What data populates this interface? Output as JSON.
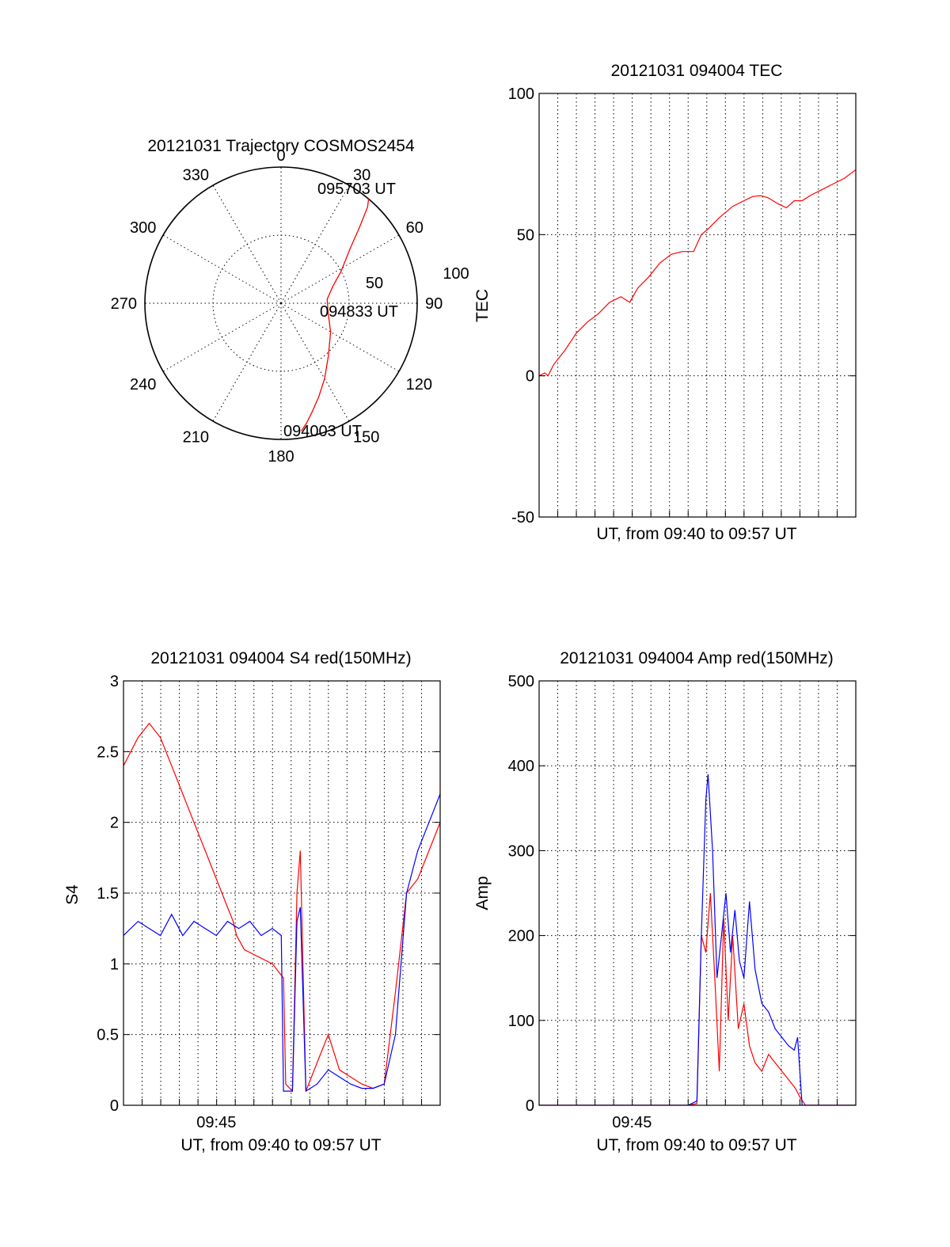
{
  "colors": {
    "red": "#ff0000",
    "blue": "#0000ff",
    "axis": "#000000"
  },
  "chart_data": [
    {
      "id": "polar",
      "type": "line",
      "projection": "polar",
      "title": "20121031 Trajectory COSMOS2454",
      "angle_labels": [
        "0",
        "30",
        "60",
        "90",
        "120",
        "150",
        "180",
        "210",
        "240",
        "270",
        "300",
        "330"
      ],
      "radius_labels": [
        "50",
        "100"
      ],
      "annotations": [
        "095703 UT",
        "094833 UT",
        "094003 UT"
      ],
      "series": [
        {
          "color": "red",
          "azimuth_deg": [
            171,
            168,
            164,
            158,
            150,
            138,
            120,
            100,
            85,
            72,
            62,
            52,
            46,
            42,
            40
          ],
          "zenith": [
            95,
            90,
            83,
            74,
            64,
            52,
            42,
            35,
            34,
            40,
            50,
            64,
            80,
            95,
            100
          ]
        }
      ]
    },
    {
      "id": "tec",
      "type": "line",
      "title": "20121031 094004 TEC",
      "xlabel": "UT, from 09:40 to 09:57 UT",
      "ylabel": "TEC",
      "xlim": [
        9.667,
        9.95
      ],
      "ylim": [
        -50,
        100
      ],
      "yticks": [
        "-50",
        "0",
        "50",
        "100"
      ],
      "xticks": [],
      "series": [
        {
          "color": "red",
          "x": [
            9.667,
            9.672,
            9.675,
            9.68,
            9.69,
            9.7,
            9.71,
            9.72,
            9.73,
            9.74,
            9.748,
            9.755,
            9.765,
            9.775,
            9.785,
            9.795,
            9.805,
            9.812,
            9.818,
            9.828,
            9.84,
            9.85,
            9.858,
            9.865,
            9.872,
            9.88,
            9.888,
            9.895,
            9.902,
            9.91,
            9.92,
            9.93,
            9.94,
            9.95
          ],
          "y": [
            0,
            1,
            0,
            4,
            9,
            15,
            19,
            22,
            26,
            28,
            26,
            31,
            35,
            40,
            43,
            44,
            44,
            50,
            52,
            56,
            60,
            62,
            63.5,
            63.8,
            63,
            61,
            59.5,
            62,
            62,
            64,
            66,
            68,
            70,
            73
          ]
        }
      ]
    },
    {
      "id": "s4",
      "type": "line",
      "title": "20121031 094004 S4 red(150MHz)",
      "xlabel": "UT, from 09:40 to 09:57 UT",
      "ylabel": "S4",
      "xlim": [
        9.667,
        9.95
      ],
      "ylim": [
        0,
        3
      ],
      "yticks": [
        "0",
        "0.5",
        "1",
        "1.5",
        "2",
        "2.5",
        "3"
      ],
      "xticks": [
        {
          "x": 9.75,
          "label": "09:45"
        }
      ],
      "series": [
        {
          "color": "red",
          "x": [
            9.667,
            9.68,
            9.69,
            9.7,
            9.71,
            9.72,
            9.73,
            9.74,
            9.75,
            9.76,
            9.765,
            9.768,
            9.775,
            9.8,
            9.81,
            9.812,
            9.818,
            9.822,
            9.825,
            9.83,
            9.84,
            9.85,
            9.86,
            9.87,
            9.88,
            9.89,
            9.9,
            9.91,
            9.92,
            9.93,
            9.94,
            9.95
          ],
          "y": [
            2.4,
            2.6,
            2.7,
            2.6,
            2.4,
            2.2,
            2.0,
            1.8,
            1.6,
            1.4,
            1.3,
            1.2,
            1.1,
            1.0,
            0.9,
            0.15,
            0.1,
            1.5,
            1.8,
            0.1,
            0.3,
            0.5,
            0.25,
            0.2,
            0.15,
            0.12,
            0.15,
            0.8,
            1.5,
            1.6,
            1.8,
            2.0
          ]
        },
        {
          "color": "blue",
          "x": [
            9.667,
            9.68,
            9.69,
            9.7,
            9.71,
            9.72,
            9.73,
            9.74,
            9.75,
            9.76,
            9.77,
            9.78,
            9.79,
            9.8,
            9.808,
            9.81,
            9.812,
            9.818,
            9.822,
            9.825,
            9.83,
            9.84,
            9.85,
            9.86,
            9.87,
            9.88,
            9.89,
            9.9,
            9.91,
            9.92,
            9.93,
            9.94,
            9.95
          ],
          "y": [
            1.2,
            1.3,
            1.25,
            1.2,
            1.35,
            1.2,
            1.3,
            1.25,
            1.2,
            1.3,
            1.25,
            1.3,
            1.2,
            1.25,
            1.2,
            0.1,
            0.1,
            0.1,
            1.3,
            1.4,
            0.1,
            0.15,
            0.25,
            0.2,
            0.15,
            0.12,
            0.12,
            0.15,
            0.5,
            1.5,
            1.8,
            2.0,
            2.2
          ]
        }
      ]
    },
    {
      "id": "amp",
      "type": "line",
      "title": "20121031 094004 Amp red(150MHz)",
      "xlabel": "UT, from 09:40 to 09:57 UT",
      "ylabel": "Amp",
      "xlim": [
        9.667,
        9.95
      ],
      "ylim": [
        0,
        500
      ],
      "yticks": [
        "0",
        "100",
        "200",
        "300",
        "400",
        "500"
      ],
      "xticks": [
        {
          "x": 9.75,
          "label": "09:45"
        }
      ],
      "series": [
        {
          "color": "red",
          "x": [
            9.667,
            9.8,
            9.808,
            9.812,
            9.816,
            9.82,
            9.824,
            9.828,
            9.832,
            9.836,
            9.84,
            9.845,
            9.85,
            9.855,
            9.86,
            9.866,
            9.872,
            9.878,
            9.884,
            9.89,
            9.896,
            9.9,
            9.905,
            9.95
          ],
          "y": [
            0,
            0,
            2,
            200,
            180,
            250,
            150,
            40,
            220,
            100,
            200,
            90,
            120,
            70,
            50,
            40,
            60,
            50,
            40,
            30,
            20,
            10,
            0,
            0
          ]
        },
        {
          "color": "blue",
          "x": [
            9.667,
            9.8,
            9.808,
            9.812,
            9.816,
            9.818,
            9.822,
            9.826,
            9.83,
            9.834,
            9.838,
            9.842,
            9.846,
            9.85,
            9.855,
            9.86,
            9.866,
            9.872,
            9.878,
            9.884,
            9.89,
            9.895,
            9.898,
            9.902,
            9.95
          ],
          "y": [
            0,
            0,
            5,
            200,
            360,
            390,
            300,
            150,
            200,
            250,
            180,
            230,
            170,
            150,
            240,
            160,
            120,
            110,
            90,
            80,
            70,
            65,
            80,
            0,
            0
          ]
        }
      ]
    }
  ]
}
